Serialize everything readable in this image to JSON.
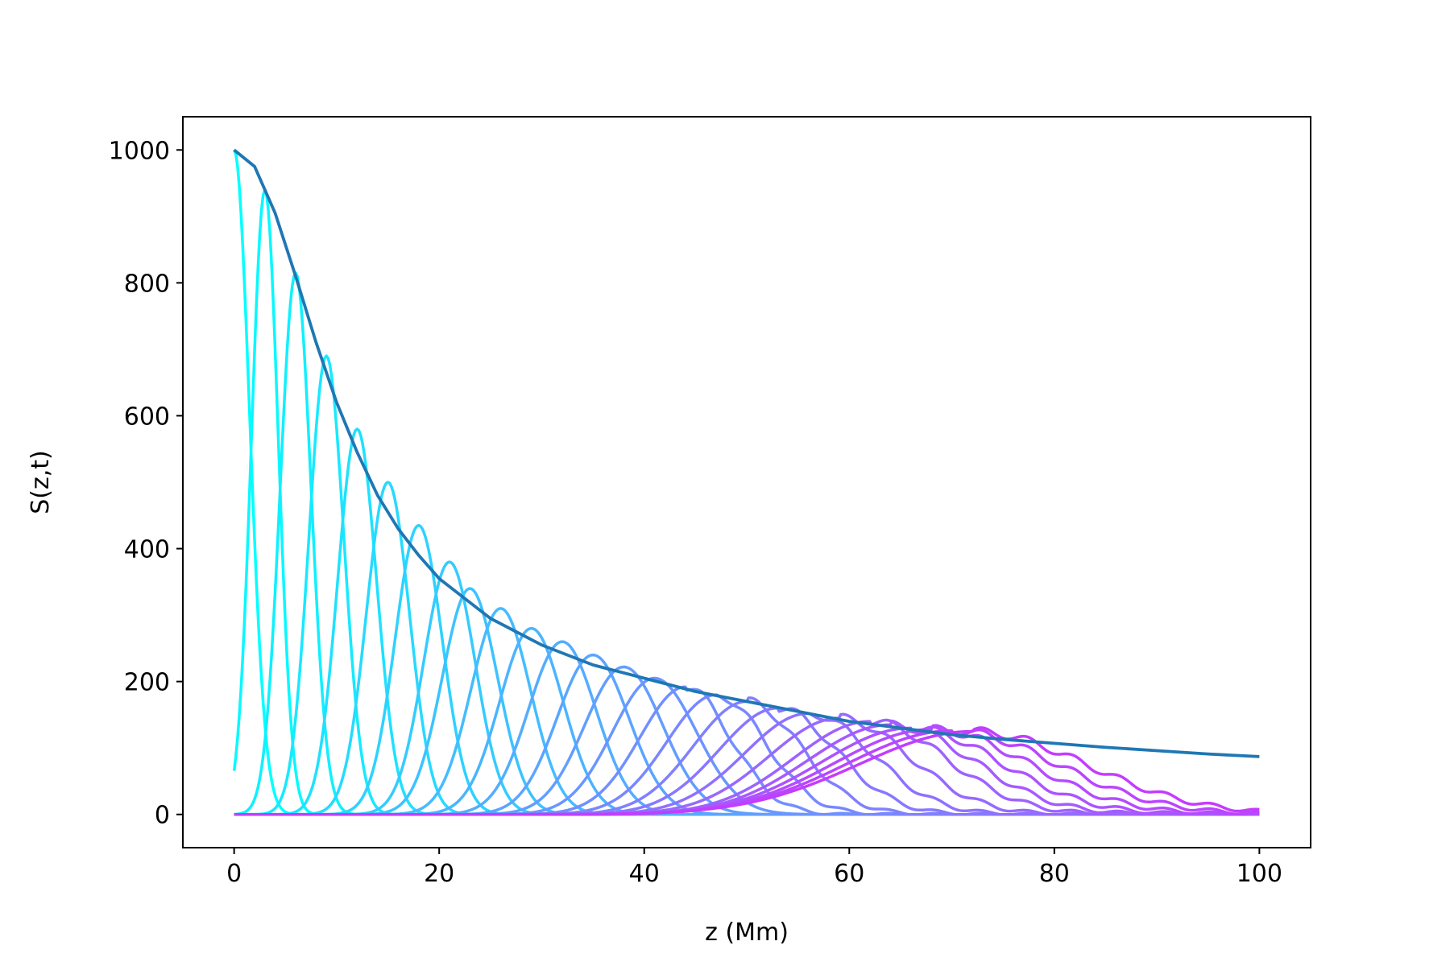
{
  "chart_data": {
    "type": "line",
    "title": "",
    "xlabel": "z (Mm)",
    "ylabel": "S(z,t)",
    "xlim": [
      -5,
      105
    ],
    "ylim": [
      -50,
      1050
    ],
    "xticks": [
      0,
      20,
      40,
      60,
      80,
      100
    ],
    "yticks": [
      0,
      200,
      400,
      600,
      800,
      1000
    ],
    "grid": false,
    "legend": "none",
    "colormap": "cool (cyan to magenta)",
    "colormap_start": "#00ffff",
    "colormap_end": "#c43cff",
    "envelope": {
      "color": "#1f77b4",
      "x": [
        0,
        2,
        4,
        6,
        8,
        10,
        12,
        14,
        16,
        18,
        20,
        25,
        30,
        35,
        40,
        45,
        50,
        55,
        60,
        65,
        70,
        75,
        80,
        85,
        90,
        95,
        100
      ],
      "y": [
        1000,
        975,
        905,
        810,
        710,
        620,
        545,
        480,
        430,
        390,
        355,
        295,
        255,
        225,
        205,
        185,
        170,
        155,
        140,
        130,
        120,
        113,
        107,
        101,
        96,
        91,
        87
      ]
    },
    "pulses": [
      {
        "peak_z": 0,
        "peak_S": 1000,
        "width": 1.5
      },
      {
        "peak_z": 3,
        "peak_S": 940,
        "width": 1.3
      },
      {
        "peak_z": 6,
        "peak_S": 815,
        "width": 1.5
      },
      {
        "peak_z": 9,
        "peak_S": 690,
        "width": 1.7
      },
      {
        "peak_z": 12,
        "peak_S": 580,
        "width": 1.9
      },
      {
        "peak_z": 15,
        "peak_S": 500,
        "width": 2.1
      },
      {
        "peak_z": 18,
        "peak_S": 435,
        "width": 2.3
      },
      {
        "peak_z": 21,
        "peak_S": 380,
        "width": 2.5
      },
      {
        "peak_z": 23,
        "peak_S": 340,
        "width": 2.7
      },
      {
        "peak_z": 26,
        "peak_S": 310,
        "width": 2.9
      },
      {
        "peak_z": 29,
        "peak_S": 280,
        "width": 3.1
      },
      {
        "peak_z": 32,
        "peak_S": 260,
        "width": 3.3
      },
      {
        "peak_z": 35,
        "peak_S": 240,
        "width": 3.5
      },
      {
        "peak_z": 38,
        "peak_S": 222,
        "width": 3.8
      },
      {
        "peak_z": 41,
        "peak_S": 205,
        "width": 4.1
      },
      {
        "peak_z": 44,
        "peak_S": 192,
        "width": 4.4
      },
      {
        "peak_z": 47,
        "peak_S": 180,
        "width": 4.8
      },
      {
        "peak_z": 50,
        "peak_S": 170,
        "width": 5.2
      },
      {
        "peak_z": 53,
        "peak_S": 160,
        "width": 5.7
      },
      {
        "peak_z": 56,
        "peak_S": 152,
        "width": 6.2
      },
      {
        "peak_z": 59,
        "peak_S": 145,
        "width": 6.8
      },
      {
        "peak_z": 62,
        "peak_S": 140,
        "width": 7.4
      },
      {
        "peak_z": 64,
        "peak_S": 135,
        "width": 8.0
      },
      {
        "peak_z": 66,
        "peak_S": 130,
        "width": 8.7
      },
      {
        "peak_z": 68,
        "peak_S": 128,
        "width": 9.4
      },
      {
        "peak_z": 70,
        "peak_S": 126,
        "width": 10.2
      },
      {
        "peak_z": 72,
        "peak_S": 125,
        "width": 11.0
      }
    ]
  }
}
